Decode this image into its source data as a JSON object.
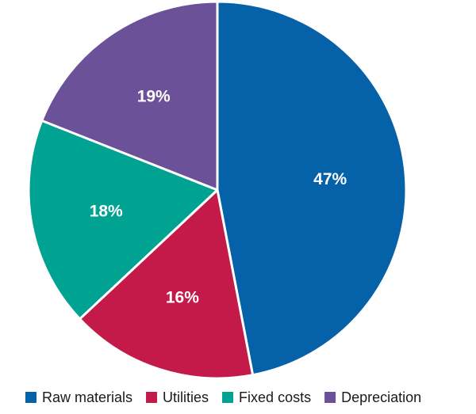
{
  "chart_data": {
    "type": "pie",
    "title": "",
    "legend_position": "bottom",
    "slices": [
      {
        "name": "Raw materials",
        "value": 47,
        "label": "47%",
        "color": "#0561a8"
      },
      {
        "name": "Utilities",
        "value": 16,
        "label": "16%",
        "color": "#c41a4a"
      },
      {
        "name": "Fixed costs",
        "value": 18,
        "label": "18%",
        "color": "#00a292"
      },
      {
        "name": "Depreciation",
        "value": 19,
        "label": "19%",
        "color": "#6b5197"
      }
    ]
  }
}
